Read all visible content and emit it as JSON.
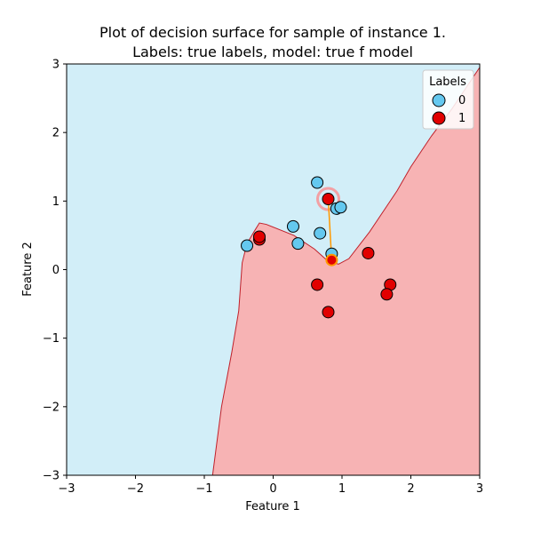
{
  "chart_data": {
    "type": "scatter",
    "title": "Plot of decision surface for sample of instance 1.",
    "subtitle": "Labels: true labels, model: true f model",
    "xlabel": "Feature 1",
    "ylabel": "Feature 2",
    "xlim": [
      -3,
      3
    ],
    "ylim": [
      -3,
      3
    ],
    "xticks": [
      -3,
      -2,
      -1,
      0,
      1,
      2,
      3
    ],
    "yticks": [
      -3,
      -2,
      -1,
      0,
      1,
      2,
      3
    ],
    "xtick_labels": [
      "−3",
      "−2",
      "−1",
      "0",
      "1",
      "2",
      "3"
    ],
    "ytick_labels": [
      "−3",
      "−2",
      "−1",
      "0",
      "1",
      "2",
      "3"
    ],
    "grid": false,
    "legend": {
      "title": "Labels",
      "position": "top-right",
      "entries": [
        "0",
        "1"
      ]
    },
    "colors": {
      "region_0": "#d2eef8",
      "region_1": "#f7b3b4",
      "boundary": "#c0202a",
      "class_0": "#64c8ef",
      "class_1": "#e10000",
      "highlight": "#f3a0a4",
      "counterfactual": "#ff9800",
      "marker_edge": "#000000"
    },
    "decision_boundary": [
      [
        -0.88,
        -3.0
      ],
      [
        -0.75,
        -2.0
      ],
      [
        -0.6,
        -1.2
      ],
      [
        -0.5,
        -0.6
      ],
      [
        -0.45,
        0.1
      ],
      [
        -0.38,
        0.38
      ],
      [
        -0.28,
        0.55
      ],
      [
        -0.2,
        0.68
      ],
      [
        -0.1,
        0.66
      ],
      [
        0.3,
        0.5
      ],
      [
        0.6,
        0.3
      ],
      [
        0.8,
        0.12
      ],
      [
        0.95,
        0.08
      ],
      [
        1.1,
        0.16
      ],
      [
        1.4,
        0.55
      ],
      [
        1.8,
        1.15
      ],
      [
        2.0,
        1.5
      ],
      [
        2.3,
        1.95
      ],
      [
        2.6,
        2.35
      ],
      [
        3.0,
        2.95
      ]
    ],
    "series": [
      {
        "name": "0",
        "points": [
          [
            -0.38,
            0.35
          ],
          [
            0.29,
            0.63
          ],
          [
            0.36,
            0.38
          ],
          [
            0.64,
            1.27
          ],
          [
            0.68,
            0.53
          ],
          [
            0.92,
            0.89
          ],
          [
            0.98,
            0.91
          ],
          [
            0.85,
            0.23
          ]
        ]
      },
      {
        "name": "1",
        "points": [
          [
            -0.2,
            0.44
          ],
          [
            -0.2,
            0.48
          ],
          [
            0.8,
            1.03
          ],
          [
            1.38,
            0.24
          ],
          [
            0.64,
            -0.22
          ],
          [
            1.7,
            -0.22
          ],
          [
            1.65,
            -0.36
          ],
          [
            0.8,
            -0.62
          ]
        ]
      }
    ],
    "selected_instance": [
      0.8,
      1.03
    ],
    "counterfactual": [
      0.85,
      0.14
    ]
  }
}
